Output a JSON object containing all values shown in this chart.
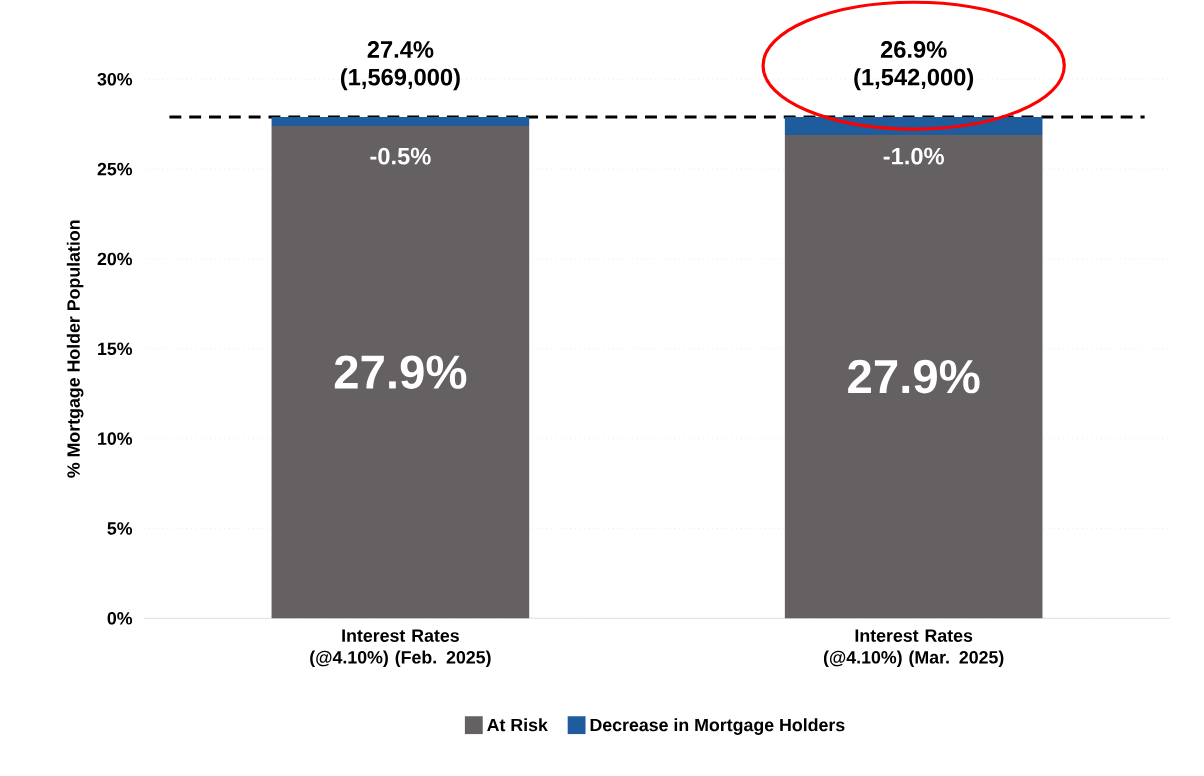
{
  "chart_data": {
    "type": "bar",
    "stacked": true,
    "ylabel": "% Mortgage Holder Population",
    "categories": [
      "Interest Rates (@4.10%) (Feb. 2025)",
      "Interest Rates (@4.10%) (Mar. 2025)"
    ],
    "series": [
      {
        "name": "At Risk",
        "color": "#656061",
        "values": [
          27.4,
          26.9
        ]
      },
      {
        "name": "Decrease in Mortgage Holders",
        "color": "#1f5c9e",
        "values": [
          0.5,
          1.0
        ]
      }
    ],
    "ylim": [
      0,
      30
    ],
    "yticks": [
      {
        "value": 0,
        "label": "0%"
      },
      {
        "value": 5,
        "label": "5%"
      },
      {
        "value": 10,
        "label": "10%"
      },
      {
        "value": 15,
        "label": "15%"
      },
      {
        "value": 20,
        "label": "20%"
      },
      {
        "value": 25,
        "label": "25%"
      },
      {
        "value": 30,
        "label": "30%"
      }
    ],
    "grid": "y",
    "legend": "bottom",
    "ref_lines": [
      {
        "axis": "y",
        "value": 27.9,
        "color": "#000000",
        "line_style": "dashed"
      }
    ],
    "annotations": [
      "27.4% (1,569,000)",
      "26.9% (1,542,000)",
      "-0.5%",
      "-1.0%",
      "27.9%",
      "27.9%"
    ]
  }
}
